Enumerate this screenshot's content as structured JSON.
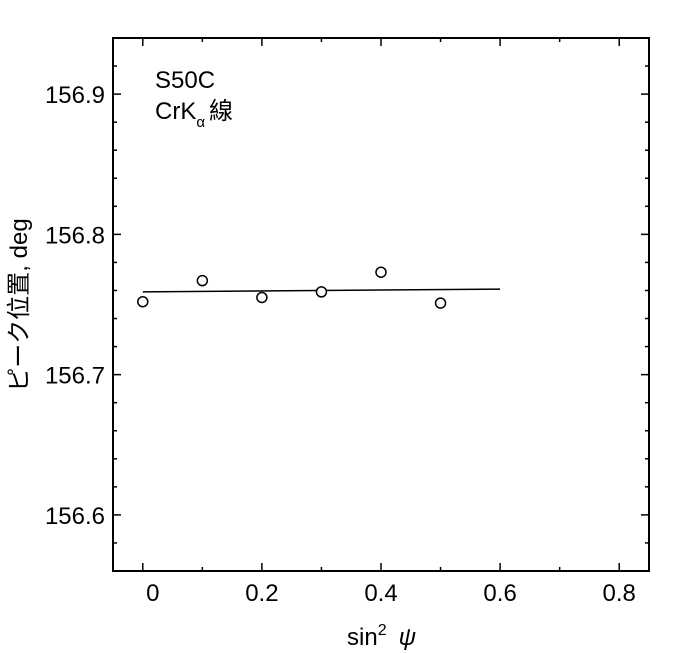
{
  "chart_data": {
    "type": "scatter",
    "title": "",
    "annotation": {
      "line1": "S50C",
      "line2_main": "CrK",
      "line2_sub": "α",
      "line2_tail": "線"
    },
    "xlabel": {
      "main": "sin",
      "sup": "2",
      "symbol": "ψ"
    },
    "ylabel": "ピーク位置, deg",
    "xlim": [
      -0.05,
      0.85
    ],
    "ylim": [
      156.56,
      156.94
    ],
    "x_ticks": [
      0,
      0.2,
      0.4,
      0.6,
      0.8
    ],
    "x_tick_labels": [
      "0",
      "0.2",
      "0.4",
      "0.6",
      "0.8"
    ],
    "y_ticks": [
      156.6,
      156.7,
      156.8,
      156.9
    ],
    "y_tick_labels": [
      "156.6",
      "156.7",
      "156.8",
      "156.9"
    ],
    "points": [
      {
        "x": 0.0,
        "y": 156.752
      },
      {
        "x": 0.1,
        "y": 156.767
      },
      {
        "x": 0.2,
        "y": 156.755
      },
      {
        "x": 0.3,
        "y": 156.759
      },
      {
        "x": 0.4,
        "y": 156.773
      },
      {
        "x": 0.5,
        "y": 156.751
      }
    ],
    "fit_line": {
      "x": [
        0.0,
        0.6
      ],
      "y": [
        156.759,
        156.761
      ]
    },
    "grid": false,
    "legend": "none",
    "marker": "open-circle",
    "colors": {
      "ink": "#000000",
      "background": "#ffffff"
    }
  }
}
